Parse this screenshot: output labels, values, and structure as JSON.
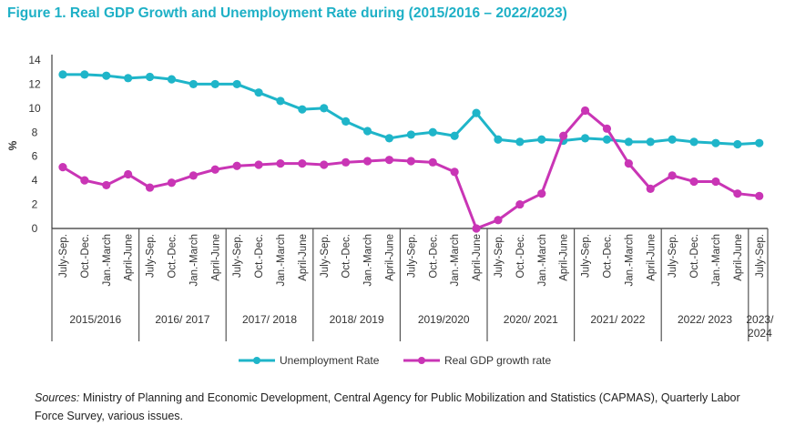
{
  "title": "Figure 1. Real GDP Growth and Unemployment Rate during (2015/2016 – 2022/2023)",
  "sources_label": "Sources:",
  "sources_text": " Ministry of Planning and Economic Development, Central Agency for Public Mobilization and Statistics (CAPMAS), Quarterly Labor Force Survey, various issues.",
  "chart_data": {
    "type": "line",
    "ylabel": "%",
    "ylim": [
      0,
      14
    ],
    "yticks": [
      0,
      2,
      4,
      6,
      8,
      10,
      12,
      14
    ],
    "grid": false,
    "legend_position": "bottom",
    "quarters": [
      "July-Sep.",
      "Oct.-Dec.",
      "Jan.-March",
      "April-June"
    ],
    "groups": [
      {
        "label": "2015/2016",
        "quarters": [
          "July-Sep.",
          "Oct.-Dec.",
          "Jan.-March",
          "April-June"
        ]
      },
      {
        "label": "2016/ 2017",
        "quarters": [
          "July-Sep.",
          "Oct.-Dec.",
          "Jan.-March",
          "April-June"
        ]
      },
      {
        "label": "2017/ 2018",
        "quarters": [
          "July-Sep.",
          "Oct.-Dec.",
          "Jan.-March",
          "April-June"
        ]
      },
      {
        "label": "2018/ 2019",
        "quarters": [
          "July-Sep.",
          "Oct.-Dec.",
          "Jan.-March",
          "April-June"
        ]
      },
      {
        "label": "2019/2020",
        "quarters": [
          "July-Sep.",
          "Oct.-Dec.",
          "Jan.-March",
          "April-June"
        ]
      },
      {
        "label": "2020/ 2021",
        "quarters": [
          "July-Sep.",
          "Oct.-Dec.",
          "Jan.-March",
          "April-June"
        ]
      },
      {
        "label": "2021/ 2022",
        "quarters": [
          "July-Sep.",
          "Oct.-Dec.",
          "Jan.-March",
          "April-June"
        ]
      },
      {
        "label": "2022/ 2023",
        "quarters": [
          "July-Sep.",
          "Oct.-Dec.",
          "Jan.-March",
          "April-June"
        ]
      },
      {
        "label": "2023/ 2024",
        "quarters": [
          "July-Sep."
        ]
      }
    ],
    "series": [
      {
        "name": "Unemployment Rate",
        "color": "#1fb5c9",
        "values": [
          12.8,
          12.8,
          12.7,
          12.5,
          12.6,
          12.4,
          12.0,
          12.0,
          12.0,
          11.3,
          10.6,
          9.9,
          10.0,
          8.9,
          8.1,
          7.5,
          7.8,
          8.0,
          7.7,
          9.6,
          7.4,
          7.2,
          7.4,
          7.3,
          7.5,
          7.4,
          7.2,
          7.2,
          7.4,
          7.2,
          7.1,
          7.0,
          7.1
        ]
      },
      {
        "name": "Real GDP growth rate",
        "color": "#c935b5",
        "values": [
          5.1,
          4.0,
          3.6,
          4.5,
          3.4,
          3.8,
          4.4,
          4.9,
          5.2,
          5.3,
          5.4,
          5.4,
          5.3,
          5.5,
          5.6,
          5.7,
          5.6,
          5.5,
          4.7,
          0,
          0.7,
          2.0,
          2.9,
          7.7,
          9.8,
          8.3,
          5.4,
          3.3,
          4.4,
          3.9,
          3.9,
          2.9,
          2.7
        ]
      }
    ]
  }
}
